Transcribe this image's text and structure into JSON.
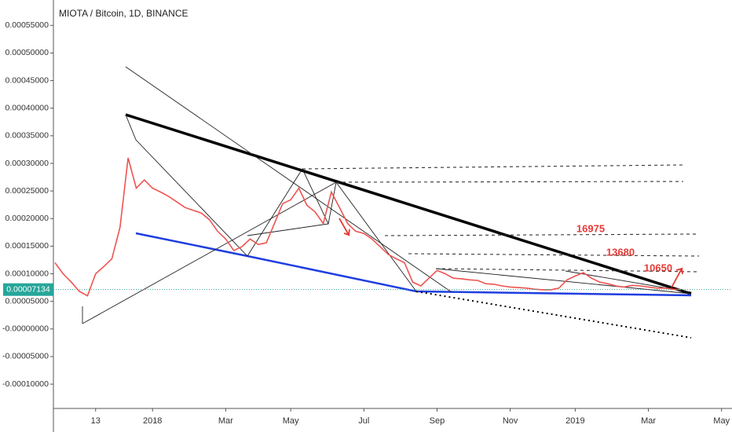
{
  "chart_data": {
    "type": "line",
    "title": "MIOTA / Bitcoin, 1D, BINANCE",
    "color": "#ef5350",
    "categories": [
      null,
      null,
      null,
      null,
      null,
      "13",
      null,
      null,
      null,
      null,
      null,
      null,
      "2018",
      null,
      null,
      null,
      null,
      null,
      null,
      null,
      null,
      "Mar",
      null,
      null,
      null,
      null,
      null,
      null,
      null,
      "May",
      null,
      null,
      null,
      null,
      null,
      null,
      null,
      null,
      "Jul",
      null,
      null,
      null,
      null,
      null,
      null,
      null,
      null,
      "Sep",
      null,
      null,
      null,
      null,
      null,
      null,
      null,
      null,
      "Nov",
      null,
      null,
      null,
      null,
      null,
      null,
      null,
      "2019",
      null,
      null,
      null,
      null,
      null,
      null,
      null,
      null,
      "Mar",
      null,
      null,
      null,
      null,
      null,
      null,
      null,
      null,
      "May"
    ],
    "values": [
      0.00012,
      0.0001,
      8.5e-05,
      6.8e-05,
      6e-05,
      0.0001,
      0.000113,
      0.000127,
      0.000184,
      0.00031,
      0.000255,
      0.00027,
      0.000255,
      0.000248,
      0.00024,
      0.00023,
      0.00022,
      0.000215,
      0.00021,
      0.000198,
      0.000177,
      0.000163,
      0.000142,
      0.000149,
      0.000163,
      0.000153,
      0.000156,
      0.000191,
      0.000227,
      0.000234,
      0.000255,
      0.000224,
      0.000212,
      0.000191,
      0.000248,
      0.00022,
      0.000191,
      0.000177,
      0.000173,
      0.000163,
      0.000149,
      0.000135,
      0.000127,
      0.00012,
      8.5e-05,
      7.8e-05,
      9.2e-05,
      0.000106,
      0.0001,
      9.2e-05,
      9.1e-05,
      8.9e-05,
      8.8e-05,
      8.2e-05,
      8.1e-05,
      7.8e-05,
      7.6e-05,
      7.5e-05,
      7.4e-05,
      7.2e-05,
      7.1e-05,
      7.1e-05,
      7.4e-05,
      8.9e-05,
      9.6e-05,
      0.000102,
      9.2e-05,
      8.5e-05,
      8.2e-05,
      7.8e-05,
      7.6e-05,
      7.9e-05,
      7.8e-05,
      7.6e-05,
      7.4e-05,
      7.4e-05,
      7.2e-05,
      7.134e-05,
      null,
      null,
      null,
      null,
      null
    ],
    "last_price": 7.134e-05,
    "ylim": [
      -0.000144,
      0.000596
    ],
    "yticks": [
      {
        "value": 0.00055,
        "label": "0.00055000"
      },
      {
        "value": 0.0005,
        "label": "0.00050000"
      },
      {
        "value": 0.00045,
        "label": "0.00045000"
      },
      {
        "value": 0.0004,
        "label": "0.00040000"
      },
      {
        "value": 0.00035,
        "label": "0.00035000"
      },
      {
        "value": 0.0003,
        "label": "0.00030000"
      },
      {
        "value": 0.00025,
        "label": "0.00025000"
      },
      {
        "value": 0.0002,
        "label": "0.00020000"
      },
      {
        "value": 0.00015,
        "label": "0.00015000"
      },
      {
        "value": 0.0001,
        "label": "0.00010000"
      },
      {
        "value": 5e-05,
        "label": "0.00005000"
      },
      {
        "value": 0,
        "label": "-0.00000000"
      },
      {
        "value": -5e-05,
        "label": "-0.00005000"
      },
      {
        "value": -0.0001,
        "label": "-0.00010000"
      }
    ],
    "annotations": [
      "16975",
      "13680",
      "10650"
    ]
  }
}
